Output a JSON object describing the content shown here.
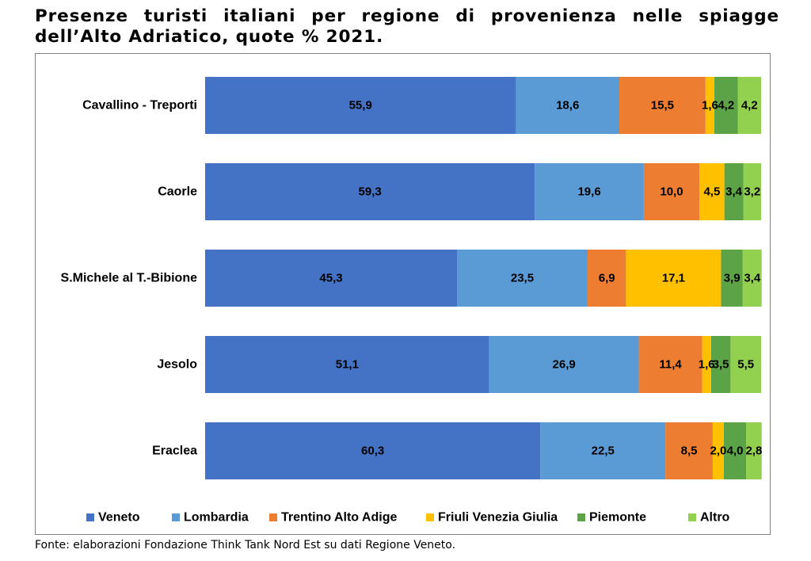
{
  "title": "Presenze turisti italiani per regione di provenienza nelle spiagge dell’Alto Adriatico, quote % 2021.",
  "source": "Fonte: elaborazioni Fondazione Think Tank Nord Est su dati Regione Veneto.",
  "chart_data": {
    "type": "bar",
    "orientation": "horizontal",
    "stacked": true,
    "percent": true,
    "title": "Presenze turisti italiani per regione di provenienza nelle spiagge dell’Alto Adriatico, quote % 2021.",
    "categories": [
      "Cavallino - Treporti",
      "Caorle",
      "S.Michele al T.-Bibione",
      "Jesolo",
      "Eraclea"
    ],
    "category_labels": [
      "Cavallino - Treporti",
      "Caorle",
      "S.Michele al T.-Bibione",
      "Jesolo",
      "Eraclea"
    ],
    "series": [
      {
        "name": "Veneto",
        "color": "#4472C4",
        "values": [
          55.9,
          59.3,
          45.3,
          51.1,
          60.3
        ],
        "labels": [
          "55,9",
          "59,3",
          "45,3",
          "51,1",
          "60,3"
        ]
      },
      {
        "name": "Lombardia",
        "color": "#5B9BD5",
        "values": [
          18.6,
          19.6,
          23.5,
          26.9,
          22.5
        ],
        "labels": [
          "18,6",
          "19,6",
          "23,5",
          "26,9",
          "22,5"
        ]
      },
      {
        "name": "Trentino Alto Adige",
        "color": "#ED7D31",
        "values": [
          15.5,
          10.0,
          6.9,
          11.4,
          8.5
        ],
        "labels": [
          "15,5",
          "10,0",
          "6,9",
          "11,4",
          "8,5"
        ]
      },
      {
        "name": "Friuli Venezia Giulia",
        "color": "#FFC000",
        "values": [
          1.6,
          4.5,
          17.1,
          1.6,
          2.0
        ],
        "labels": [
          "1,6",
          "4,5",
          "17,1",
          "1,6",
          "2,0"
        ]
      },
      {
        "name": "Piemonte",
        "color": "#5BA346",
        "values": [
          4.2,
          3.4,
          3.9,
          3.5,
          4.0
        ],
        "labels": [
          "4,2",
          "3,4",
          "3,9",
          "3,5",
          "4,0"
        ]
      },
      {
        "name": "Altro",
        "color": "#92D050",
        "values": [
          4.2,
          3.2,
          3.4,
          5.5,
          2.8
        ],
        "labels": [
          "4,2",
          "3,2",
          "3,4",
          "5,5",
          "2,8"
        ]
      }
    ],
    "xlim": [
      0,
      100
    ],
    "grid": false,
    "legend_position": "bottom"
  }
}
